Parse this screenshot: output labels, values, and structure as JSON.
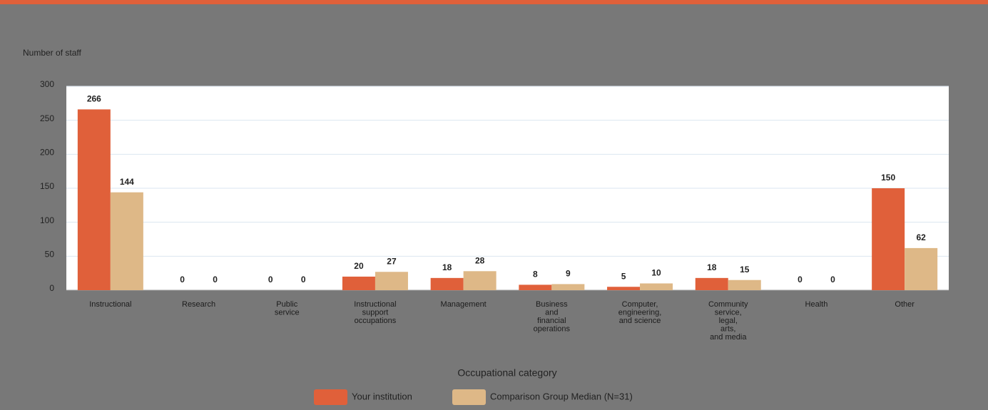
{
  "chart_data": {
    "type": "bar",
    "y_label": "Number of staff",
    "x_label": "Occupational category",
    "categories": [
      [
        "Instructional"
      ],
      [
        "Research"
      ],
      [
        "Public",
        "service"
      ],
      [
        "Instructional",
        "support",
        "occupations"
      ],
      [
        "Management"
      ],
      [
        "Business",
        "and",
        "financial",
        "operations"
      ],
      [
        "Computer,",
        "engineering,",
        "and science"
      ],
      [
        "Community",
        "service,",
        "legal,",
        "arts,",
        "and media"
      ],
      [
        "Health"
      ],
      [
        "Other"
      ]
    ],
    "series": [
      {
        "name": "Your institution",
        "color": "#e0603a",
        "values": [
          266,
          0,
          0,
          20,
          18,
          8,
          5,
          18,
          0,
          150
        ]
      },
      {
        "name": "Comparison Group Median (N=31)",
        "color": "#deb887",
        "values": [
          144,
          0,
          0,
          27,
          28,
          9,
          10,
          15,
          0,
          62
        ]
      }
    ],
    "ylim": [
      0,
      300
    ],
    "yticks": [
      0,
      50,
      100,
      150,
      200,
      250,
      300
    ],
    "grid": true
  }
}
